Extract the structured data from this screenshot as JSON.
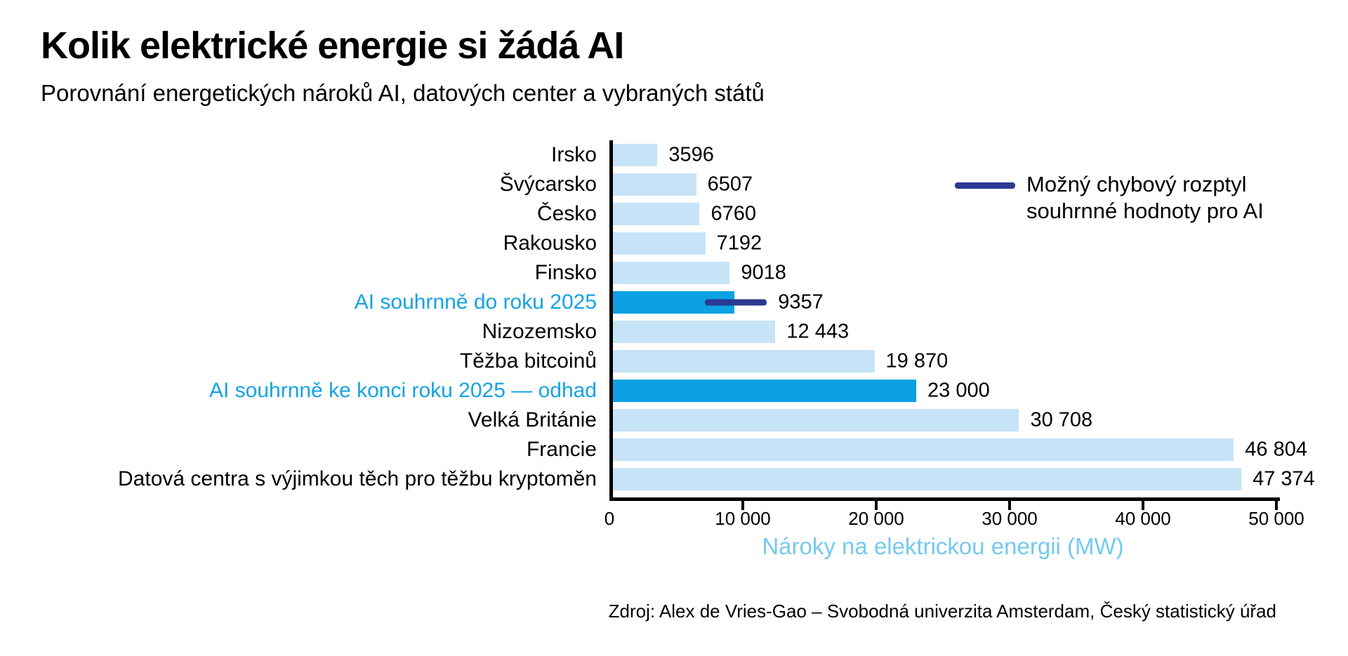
{
  "title": "Kolik elektrické energie si žádá AI",
  "subtitle": "Porovnání energetických nároků AI, datových center a vybraných států",
  "legend": {
    "line1": "Možný chybový rozptyl",
    "line2": "souhrnné hodnoty pro AI"
  },
  "source": "Zdroj: Alex de Vries-Gao – Svobodná univerzita Amsterdam, Český statistický úřad",
  "colors": {
    "bar": "#c6e3f8",
    "bar_highlight": "#0ba1e2",
    "highlight_text": "#14a3e3",
    "error_bar": "#2b3990",
    "axis": "#000000",
    "xlabel": "#74c9f0"
  },
  "chart_data": {
    "type": "bar",
    "orientation": "horizontal",
    "title": "Kolik elektrické energie si žádá AI",
    "subtitle": "Porovnání energetických nároků AI, datových center a vybraných států",
    "xlabel": "Nároky na elektrickou energii (MW)",
    "xlim": [
      0,
      50000
    ],
    "grid": false,
    "legend_position": "top-right",
    "x_ticks": [
      {
        "value": 0,
        "label": "0"
      },
      {
        "value": 10000,
        "label": "10 000"
      },
      {
        "value": 20000,
        "label": "20 000"
      },
      {
        "value": 30000,
        "label": "30 000"
      },
      {
        "value": 40000,
        "label": "40 000"
      },
      {
        "value": 50000,
        "label": "50 000"
      }
    ],
    "bars": [
      {
        "category": "Irsko",
        "value": 3596,
        "label": "3596",
        "highlight": false
      },
      {
        "category": "Švýcarsko",
        "value": 6507,
        "label": "6507",
        "highlight": false
      },
      {
        "category": "Česko",
        "value": 6760,
        "label": "6760",
        "highlight": false
      },
      {
        "category": "Rakousko",
        "value": 7192,
        "label": "7192",
        "highlight": false
      },
      {
        "category": "Finsko",
        "value": 9018,
        "label": "9018",
        "highlight": false
      },
      {
        "category": "AI souhrnně do roku 2025",
        "value": 9357,
        "label": "9357",
        "highlight": true,
        "error_low": 7150,
        "error_high": 11800
      },
      {
        "category": "Nizozemsko",
        "value": 12443,
        "label": "12 443",
        "highlight": false
      },
      {
        "category": "Těžba bitcoinů",
        "value": 19870,
        "label": "19 870",
        "highlight": false
      },
      {
        "category": "AI souhrnně ke konci roku 2025 — odhad",
        "value": 23000,
        "label": "23 000",
        "highlight": true
      },
      {
        "category": "Velká Británie",
        "value": 30708,
        "label": "30 708",
        "highlight": false
      },
      {
        "category": "Francie",
        "value": 46804,
        "label": "46 804",
        "highlight": false
      },
      {
        "category": "Datová centra s výjimkou těch pro těžbu kryptoměn",
        "value": 47374,
        "label": "47 374",
        "highlight": false
      }
    ]
  }
}
